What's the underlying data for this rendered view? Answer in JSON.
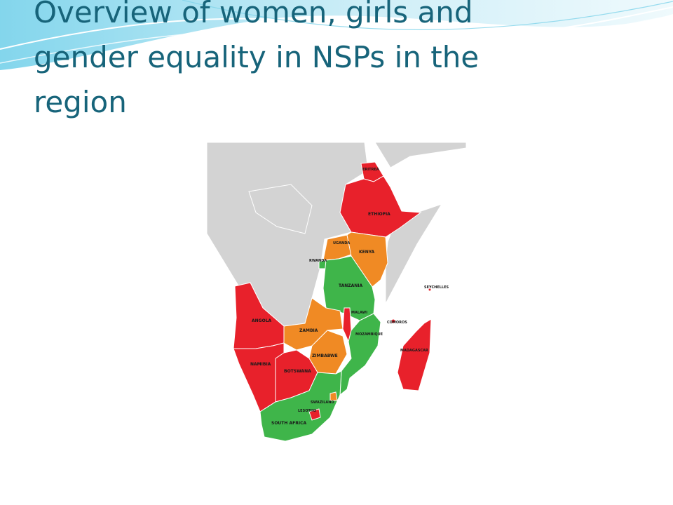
{
  "slide": {
    "title_lines": [
      "Overview of women, girls and",
      "gender equality in NSPs in the",
      "region"
    ]
  },
  "colors": {
    "title": "#17647a",
    "red": "#e8212b",
    "orange": "#f08a24",
    "green": "#3fb54a",
    "land_grey": "#d3d3d3",
    "water": "#ffffff",
    "border": "#ffffff"
  },
  "map": {
    "countries": [
      {
        "key": "eritrea",
        "label": "ERITREA",
        "status": "red"
      },
      {
        "key": "ethiopia",
        "label": "ETHIOPIA",
        "status": "red"
      },
      {
        "key": "uganda",
        "label": "UGANDA",
        "status": "orange"
      },
      {
        "key": "kenya",
        "label": "KENYA",
        "status": "orange"
      },
      {
        "key": "rwanda",
        "label": "RWANDA",
        "status": "green"
      },
      {
        "key": "tanzania",
        "label": "TANZANIA",
        "status": "green"
      },
      {
        "key": "seychelles",
        "label": "SEYCHELLES",
        "status": "red"
      },
      {
        "key": "malawi",
        "label": "MALAWI",
        "status": "red"
      },
      {
        "key": "comoros",
        "label": "COMOROS",
        "status": "red"
      },
      {
        "key": "angola",
        "label": "ANGOLA",
        "status": "red"
      },
      {
        "key": "zambia",
        "label": "ZAMBIA",
        "status": "orange"
      },
      {
        "key": "mozambique",
        "label": "MOZAMBIQUE",
        "status": "green"
      },
      {
        "key": "madagascar",
        "label": "MADAGASCAR",
        "status": "red"
      },
      {
        "key": "zimbabwe",
        "label": "ZIMBABWE",
        "status": "orange"
      },
      {
        "key": "namibia",
        "label": "NAMIBIA",
        "status": "red"
      },
      {
        "key": "botswana",
        "label": "BOTSWANA",
        "status": "red"
      },
      {
        "key": "swaziland",
        "label": "SWAZILAND",
        "status": "orange"
      },
      {
        "key": "lesotho",
        "label": "LESOTHO",
        "status": "red"
      },
      {
        "key": "south_africa",
        "label": "SOUTH AFRICA",
        "status": "green"
      }
    ]
  }
}
